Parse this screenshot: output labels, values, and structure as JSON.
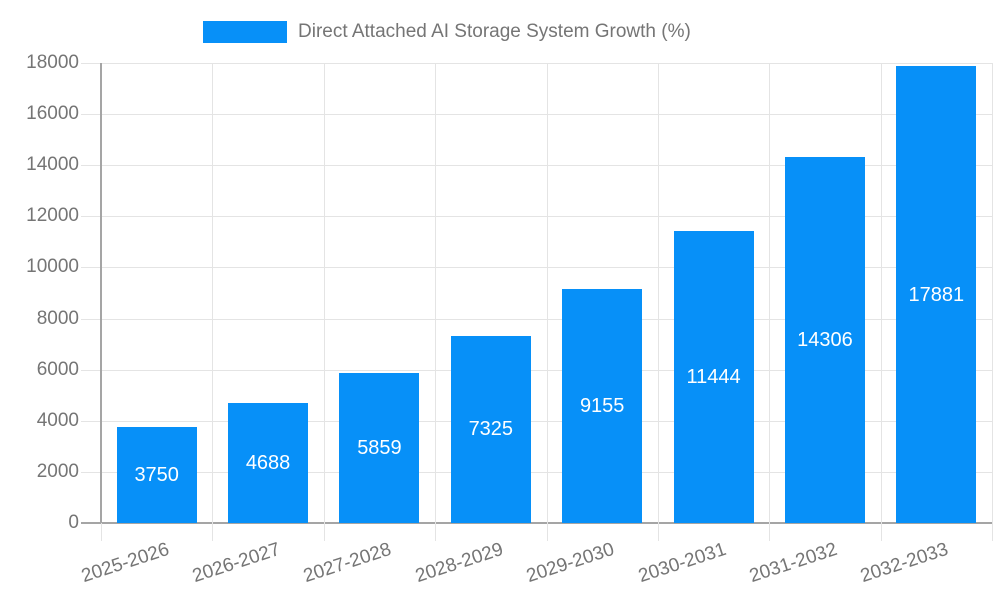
{
  "legend": {
    "position": "top",
    "items": [
      {
        "label": "Direct Attached AI Storage System Growth (%)"
      }
    ]
  },
  "chart_data": {
    "type": "bar",
    "title": "",
    "xlabel": "",
    "ylabel": "",
    "categories": [
      "2025-2026",
      "2026-2027",
      "2027-2028",
      "2028-2029",
      "2029-2030",
      "2030-2031",
      "2031-2032",
      "2032-2033"
    ],
    "series": [
      {
        "name": "Direct Attached AI Storage System Growth (%)",
        "values": [
          3750,
          4688,
          5859,
          7325,
          9155,
          11444,
          14306,
          17881
        ]
      }
    ],
    "value_labels_shown": true,
    "ylim": [
      0,
      18000
    ],
    "ytick_step": 2000,
    "y_ticks": [
      "0",
      "2000",
      "4000",
      "6000",
      "8000",
      "10000",
      "12000",
      "14000",
      "16000",
      "18000"
    ],
    "grid": true,
    "legend_position": "top",
    "colors": {
      "bar": "#0790F8",
      "grid": "#E4E4E4",
      "axis": "#A5A5A5",
      "text": "#757575",
      "value_label": "#FFFFFF",
      "background": "#FFFFFF"
    }
  }
}
